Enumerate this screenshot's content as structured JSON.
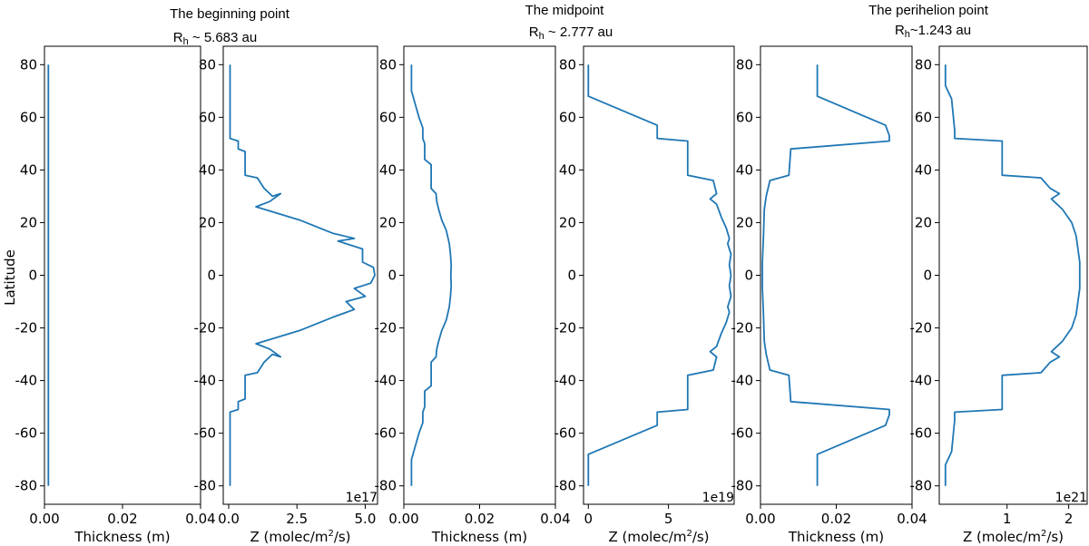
{
  "figure": {
    "ylabel": "Latitude",
    "titles": [
      {
        "line1": "The beginning point",
        "prefix": "R",
        "sub": "h",
        "rest": " ~ 5.683 au"
      },
      {
        "line1": "The midpoint",
        "prefix": "R",
        "sub": "h",
        "rest": " ~ 2.777 au"
      },
      {
        "line1": "The perihelion point",
        "prefix": "R",
        "sub": "h",
        "rest": "~1.243 au"
      }
    ],
    "line_color": "#1f77b4"
  },
  "chart_data": [
    {
      "type": "line",
      "title": "",
      "xlabel": "Thickness (m)",
      "ylabel": "Latitude",
      "xlim": [
        0,
        0.04
      ],
      "ylim": [
        -87,
        87
      ],
      "xticks": [
        0,
        0.02,
        0.04
      ],
      "xtick_labels": [
        "0.00",
        "0.02",
        "0.04"
      ],
      "yticks": [
        80,
        60,
        40,
        20,
        0,
        -20,
        -40,
        -60,
        -80
      ],
      "ytick_labels": [
        "80",
        "60",
        "40",
        "20",
        "0",
        "-20",
        "-40",
        "-60",
        "-80"
      ],
      "offset_label": "",
      "series": [
        {
          "x": [
            0.001,
            0.001
          ],
          "y": [
            80,
            -80
          ]
        }
      ]
    },
    {
      "type": "line",
      "title": "",
      "xlabel_parts": [
        "Z (molec/m",
        "2",
        "/s)"
      ],
      "ylabel": "",
      "xlim": [
        -0.2,
        5.45
      ],
      "ylim": [
        -87,
        87
      ],
      "xticks": [
        0,
        2.5,
        5
      ],
      "xtick_labels": [
        "0.0",
        "2.5",
        "5.0"
      ],
      "yticks": [
        80,
        60,
        40,
        20,
        0,
        -20,
        -40,
        -60,
        -80
      ],
      "ytick_labels": [
        "80",
        "60",
        "40",
        "20",
        "0",
        "-20",
        "-40",
        "-60",
        "-80"
      ],
      "offset_label": "1e17",
      "series": [
        {
          "x": [
            0.05,
            0.05,
            0.05,
            0.05,
            0.35,
            0.35,
            0.6,
            0.6,
            1.05,
            1.3,
            1.6,
            1.9,
            1.5,
            1.0,
            2.6,
            3.8,
            4.6,
            4.0,
            4.9,
            4.9,
            5.3,
            5.35,
            5.2,
            4.6,
            5.0,
            4.3,
            4.6,
            3.8,
            2.6,
            1.0,
            1.5,
            1.9,
            1.6,
            1.3,
            1.05,
            0.6,
            0.6,
            0.35,
            0.35,
            0.05,
            0.05,
            0.05,
            0.05
          ],
          "y": [
            80,
            70,
            60,
            52,
            51,
            48,
            47,
            38,
            37,
            33,
            30,
            31,
            28,
            26,
            21,
            16,
            14,
            13,
            10,
            5,
            3,
            0,
            -3,
            -5,
            -8,
            -10,
            -13,
            -16,
            -21,
            -26,
            -28,
            -31,
            -30,
            -33,
            -37,
            -38,
            -47,
            -48,
            -51,
            -52,
            -60,
            -70,
            -80
          ]
        }
      ]
    },
    {
      "type": "line",
      "title": "",
      "xlabel": "Thickness (m)",
      "ylabel": "",
      "xlim": [
        0,
        0.04
      ],
      "ylim": [
        -87,
        87
      ],
      "xticks": [
        0,
        0.02,
        0.04
      ],
      "xtick_labels": [
        "0.00",
        "0.02",
        "0.04"
      ],
      "yticks": [
        80,
        60,
        40,
        20,
        0,
        -20,
        -40,
        -60,
        -80
      ],
      "ytick_labels": [
        "80",
        "60",
        "40",
        "20",
        "0",
        "-20",
        "-40",
        "-60",
        "-80"
      ],
      "offset_label": "",
      "series": [
        {
          "x": [
            0.002,
            0.002,
            0.004,
            0.005,
            0.005,
            0.0055,
            0.0055,
            0.0072,
            0.0072,
            0.0085,
            0.0087,
            0.0092,
            0.01,
            0.0112,
            0.012,
            0.0123,
            0.0125,
            0.0124,
            0.0125,
            0.0123,
            0.012,
            0.0112,
            0.01,
            0.0092,
            0.0087,
            0.0085,
            0.0072,
            0.0072,
            0.0055,
            0.0055,
            0.005,
            0.005,
            0.004,
            0.002,
            0.002
          ],
          "y": [
            80,
            70,
            60,
            56,
            52,
            50,
            44,
            42,
            33,
            31,
            28,
            25,
            21,
            17,
            12,
            8,
            4,
            0,
            -4,
            -8,
            -12,
            -17,
            -21,
            -25,
            -28,
            -31,
            -33,
            -42,
            -44,
            -50,
            -52,
            -56,
            -60,
            -70,
            -80
          ]
        }
      ]
    },
    {
      "type": "line",
      "title": "",
      "xlabel_parts": [
        "Z (molec/m",
        "2",
        "/s)"
      ],
      "ylabel": "",
      "xlim": [
        -0.3,
        9.1
      ],
      "ylim": [
        -87,
        87
      ],
      "xticks": [
        0,
        5
      ],
      "xtick_labels": [
        "0",
        "5"
      ],
      "yticks": [
        80,
        60,
        40,
        20,
        0,
        -20,
        -40,
        -60,
        -80
      ],
      "ytick_labels": [
        "80",
        "60",
        "40",
        "20",
        "0",
        "-20",
        "-40",
        "-60",
        "-80"
      ],
      "offset_label": "1e19",
      "series": [
        {
          "x": [
            0.0,
            0.0,
            0.0,
            4.3,
            4.3,
            6.2,
            6.2,
            7.8,
            8.0,
            7.6,
            8.0,
            8.3,
            8.6,
            8.8,
            8.7,
            8.9,
            8.8,
            8.9,
            8.8,
            8.9,
            8.7,
            8.8,
            8.6,
            8.3,
            8.0,
            7.6,
            8.0,
            7.8,
            6.2,
            6.2,
            4.3,
            4.3,
            0.0,
            0.0,
            0.0
          ],
          "y": [
            80,
            75,
            68,
            57,
            52,
            51,
            38,
            36,
            31,
            29,
            27,
            22,
            18,
            14,
            12,
            8,
            4,
            0,
            -4,
            -8,
            -12,
            -14,
            -18,
            -22,
            -27,
            -29,
            -31,
            -36,
            -38,
            -51,
            -52,
            -57,
            -68,
            -75,
            -80
          ]
        }
      ]
    },
    {
      "type": "line",
      "title": "",
      "xlabel": "Thickness (m)",
      "ylabel": "",
      "xlim": [
        0,
        0.04
      ],
      "ylim": [
        -87,
        87
      ],
      "xticks": [
        0,
        0.02,
        0.04
      ],
      "xtick_labels": [
        "0.00",
        "0.02",
        "0.04"
      ],
      "yticks": [
        80,
        60,
        40,
        20,
        0,
        -20,
        -40,
        -60,
        -80
      ],
      "ytick_labels": [
        "80",
        "60",
        "40",
        "20",
        "0",
        "-20",
        "-40",
        "-60",
        "-80"
      ],
      "offset_label": "",
      "series": [
        {
          "x": [
            0.015,
            0.015,
            0.033,
            0.034,
            0.034,
            0.008,
            0.0075,
            0.0025,
            0.0015,
            0.001,
            0.0008,
            0.0005,
            0.0005,
            0.0005,
            0.0008,
            0.001,
            0.0015,
            0.0025,
            0.0075,
            0.008,
            0.034,
            0.034,
            0.033,
            0.015,
            0.015
          ],
          "y": [
            80,
            68,
            57,
            53,
            51,
            48,
            38,
            36,
            30,
            25,
            15,
            5,
            0,
            -5,
            -15,
            -25,
            -30,
            -36,
            -38,
            -48,
            -51,
            -53,
            -57,
            -68,
            -80
          ]
        }
      ]
    },
    {
      "type": "line",
      "title": "",
      "xlabel_parts": [
        "Z (molec/m",
        "2",
        "/s)"
      ],
      "ylabel": "",
      "xlim": [
        -0.1,
        2.3
      ],
      "ylim": [
        -87,
        87
      ],
      "xticks": [
        1,
        2
      ],
      "xtick_labels": [
        "1",
        "2"
      ],
      "yticks": [
        80,
        60,
        40,
        20,
        0,
        -20,
        -40,
        -60,
        -80
      ],
      "ytick_labels": [
        "80",
        "60",
        "40",
        "20",
        "0",
        "-20",
        "-40",
        "-60",
        "-80"
      ],
      "offset_label": "1e21",
      "series": [
        {
          "x": [
            0.0,
            0.0,
            0.1,
            0.15,
            0.15,
            0.92,
            0.92,
            1.55,
            1.7,
            1.85,
            1.72,
            1.9,
            2.05,
            2.12,
            2.15,
            2.18,
            2.18,
            2.18,
            2.15,
            2.12,
            2.05,
            1.9,
            1.72,
            1.85,
            1.7,
            1.55,
            0.92,
            0.92,
            0.15,
            0.15,
            0.1,
            0.0,
            0.0
          ],
          "y": [
            80,
            72,
            67,
            55,
            52,
            51,
            38,
            37,
            33,
            31,
            29,
            25,
            20,
            15,
            10,
            5,
            0,
            -5,
            -10,
            -15,
            -20,
            -25,
            -29,
            -31,
            -33,
            -37,
            -38,
            -51,
            -52,
            -55,
            -67,
            -72,
            -80
          ]
        }
      ]
    }
  ]
}
